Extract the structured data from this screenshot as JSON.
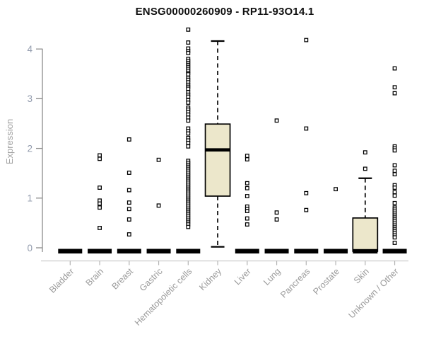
{
  "chart_data": {
    "type": "boxplot",
    "title": "ENSG00000260909 - RP11-93O14.1",
    "xlabel": "",
    "ylabel": "Expression",
    "ylim": [
      0,
      4.4
    ],
    "yticks": [
      0,
      1,
      2,
      3,
      4
    ],
    "grid": false,
    "marker": "open-square",
    "legend": "none",
    "colors": {
      "box_fill": "#ece7cb",
      "box_stroke": "#000000",
      "marker_stroke": "#000000",
      "y_axis": "#8c8c8c",
      "x_axis": "#cccccc",
      "y_tick_label": "#939cae",
      "x_tick_label": "#9a9a9a"
    },
    "categories": [
      "Bladder",
      "Brain",
      "Breast",
      "Gastric",
      "Hematopoietic cells",
      "Kidney",
      "Liver",
      "Lung",
      "Pancreas",
      "Prostate",
      "Skin",
      "Unknown / Other"
    ],
    "series": [
      {
        "category": "Bladder",
        "box": {
          "q1": 0,
          "median": 0,
          "q3": 0,
          "whisker_low": 0,
          "whisker_high": 0
        },
        "points": []
      },
      {
        "category": "Brain",
        "box": {
          "q1": 0,
          "median": 0,
          "q3": 0,
          "whisker_low": 0,
          "whisker_high": 0
        },
        "points": [
          1.86,
          1.79,
          1.21,
          0.95,
          0.89,
          0.81,
          0.4
        ]
      },
      {
        "category": "Breast",
        "box": {
          "q1": 0,
          "median": 0,
          "q3": 0,
          "whisker_low": 0,
          "whisker_high": 0
        },
        "points": [
          2.18,
          1.51,
          1.16,
          0.91,
          0.78,
          0.57,
          0.27
        ]
      },
      {
        "category": "Gastric",
        "box": {
          "q1": 0,
          "median": 0,
          "q3": 0,
          "whisker_low": 0,
          "whisker_high": 0
        },
        "points": [
          1.77,
          0.85
        ]
      },
      {
        "category": "Hematopoietic cells",
        "box": {
          "q1": 0,
          "median": 0,
          "q3": 0,
          "whisker_low": 0,
          "whisker_high": 0
        },
        "points": [
          4.39,
          4.13,
          4.01,
          3.96,
          3.92,
          3.8,
          3.76,
          3.72,
          3.68,
          3.64,
          3.6,
          3.56,
          3.52,
          3.49,
          3.42,
          3.38,
          3.33,
          3.28,
          3.24,
          3.2,
          3.13,
          3.08,
          3.04,
          2.97,
          2.92,
          2.82,
          2.78,
          2.73,
          2.68,
          2.62,
          2.56,
          2.4,
          2.35,
          2.3,
          2.21,
          2.16,
          2.11,
          2.04,
          1.75,
          1.71,
          1.67,
          1.63,
          1.59,
          1.55,
          1.51,
          1.47,
          1.43,
          1.39,
          1.35,
          1.31,
          1.27,
          1.23,
          1.19,
          1.15,
          1.11,
          1.07,
          1.03,
          0.99,
          0.95,
          0.91,
          0.87,
          0.83,
          0.79,
          0.75,
          0.71,
          0.67,
          0.63,
          0.59,
          0.55,
          0.51,
          0.47,
          0.42
        ]
      },
      {
        "category": "Kidney",
        "box": {
          "q1": 1.04,
          "median": 1.97,
          "q3": 2.49,
          "whisker_low": 0.02,
          "whisker_high": 4.16
        },
        "points": []
      },
      {
        "category": "Liver",
        "box": {
          "q1": 0,
          "median": 0,
          "q3": 0,
          "whisker_low": 0,
          "whisker_high": 0
        },
        "points": [
          1.85,
          1.78,
          1.3,
          1.2,
          1.04,
          0.83,
          0.78,
          0.74,
          0.59,
          0.47
        ]
      },
      {
        "category": "Lung",
        "box": {
          "q1": 0,
          "median": 0,
          "q3": 0,
          "whisker_low": 0,
          "whisker_high": 0
        },
        "points": [
          2.56,
          0.71,
          0.57
        ]
      },
      {
        "category": "Pancreas",
        "box": {
          "q1": 0,
          "median": 0,
          "q3": 0,
          "whisker_low": 0,
          "whisker_high": 0
        },
        "points": [
          4.18,
          2.4,
          1.1,
          0.76
        ]
      },
      {
        "category": "Prostate",
        "box": {
          "q1": 0,
          "median": 0,
          "q3": 0,
          "whisker_low": 0,
          "whisker_high": 0
        },
        "points": [
          1.18
        ]
      },
      {
        "category": "Skin",
        "box": {
          "q1": 0,
          "median": 0,
          "q3": 0.6,
          "whisker_low": 0,
          "whisker_high": 1.4
        },
        "points": [
          1.92,
          1.59
        ]
      },
      {
        "category": "Unknown / Other",
        "box": {
          "q1": 0,
          "median": 0,
          "q3": 0,
          "whisker_low": 0,
          "whisker_high": 0
        },
        "points": [
          3.61,
          3.23,
          3.11,
          2.04,
          2.0,
          1.96,
          1.66,
          1.55,
          1.48,
          1.26,
          1.21,
          1.12,
          1.05,
          0.9,
          0.81,
          0.77,
          0.73,
          0.69,
          0.65,
          0.61,
          0.57,
          0.53,
          0.49,
          0.45,
          0.41,
          0.37,
          0.33,
          0.29,
          0.25,
          0.21,
          0.1
        ]
      }
    ]
  }
}
